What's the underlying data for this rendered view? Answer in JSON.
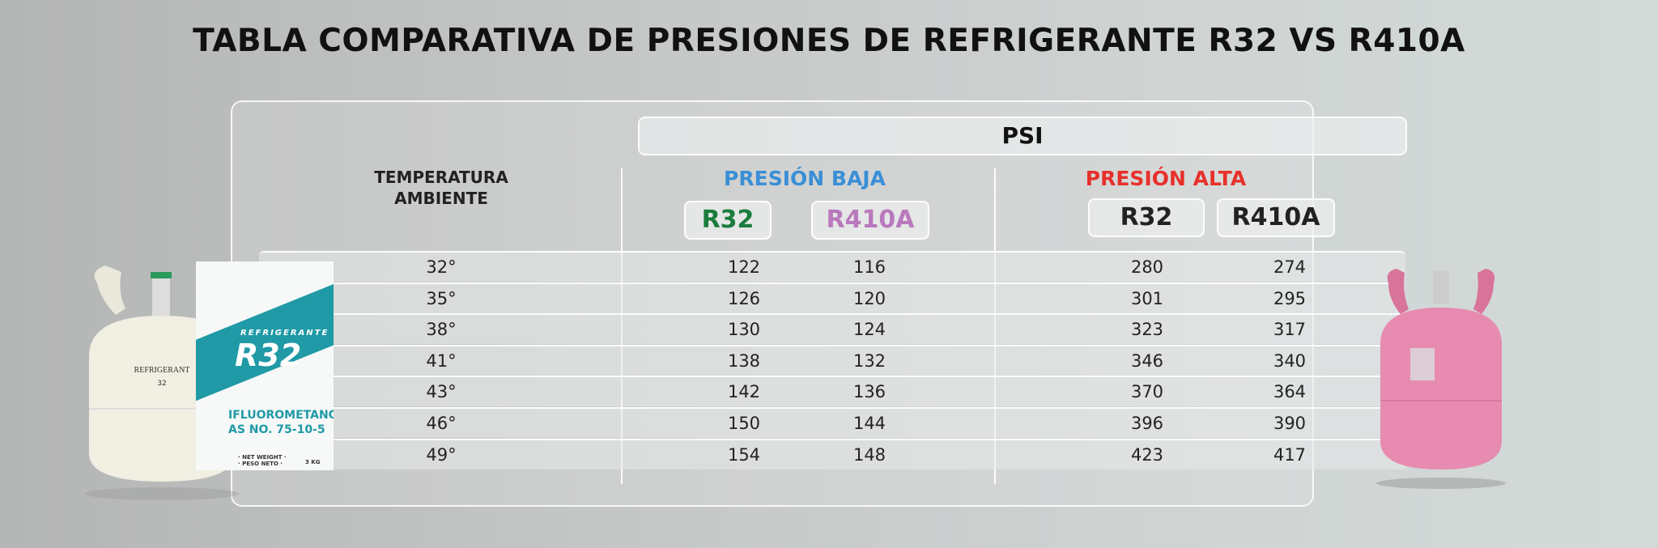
{
  "title": "TABLA COMPARATIVA DE PRESIONES DE REFRIGERANTE R32 VS R410A",
  "unit_header": "PSI",
  "temp_header": [
    "TEMPERATURA",
    "AMBIENTE"
  ],
  "low": {
    "label": "PRESIÓN BAJA",
    "color": "#3a8fd6",
    "r32": "R32",
    "r410a": "R410A"
  },
  "high": {
    "label": "PRESIÓN ALTA",
    "color": "#e8302a",
    "r32": "R32",
    "r410a": "R410A"
  },
  "colors": {
    "r32_low": "#1a7d3c",
    "r410a_low": "#b979bd",
    "r_high": "#222222"
  },
  "rows": [
    {
      "temp": "32°",
      "low_r32": "122",
      "low_r410a": "116",
      "high_r32": "280",
      "high_r410a": "274"
    },
    {
      "temp": "35°",
      "low_r32": "126",
      "low_r410a": "120",
      "high_r32": "301",
      "high_r410a": "295"
    },
    {
      "temp": "38°",
      "low_r32": "130",
      "low_r410a": "124",
      "high_r32": "323",
      "high_r410a": "317"
    },
    {
      "temp": "41°",
      "low_r32": "138",
      "low_r410a": "132",
      "high_r32": "346",
      "high_r410a": "340"
    },
    {
      "temp": "43°",
      "low_r32": "142",
      "low_r410a": "136",
      "high_r32": "370",
      "high_r410a": "364"
    },
    {
      "temp": "46°",
      "low_r32": "150",
      "low_r410a": "144",
      "high_r32": "396",
      "high_r410a": "390"
    },
    {
      "temp": "49°",
      "low_r32": "154",
      "low_r410a": "148",
      "high_r32": "423",
      "high_r410a": "417"
    }
  ],
  "box_text": {
    "brand": "REFRIGERANTE",
    "product": "R32",
    "line1": "IFLUOROMETANO",
    "line2": "AS NO. 75-10-5",
    "weight": "· NET WEIGHT ·",
    "weight2": "· PESO NETO ·",
    "qty": "3 KG"
  }
}
